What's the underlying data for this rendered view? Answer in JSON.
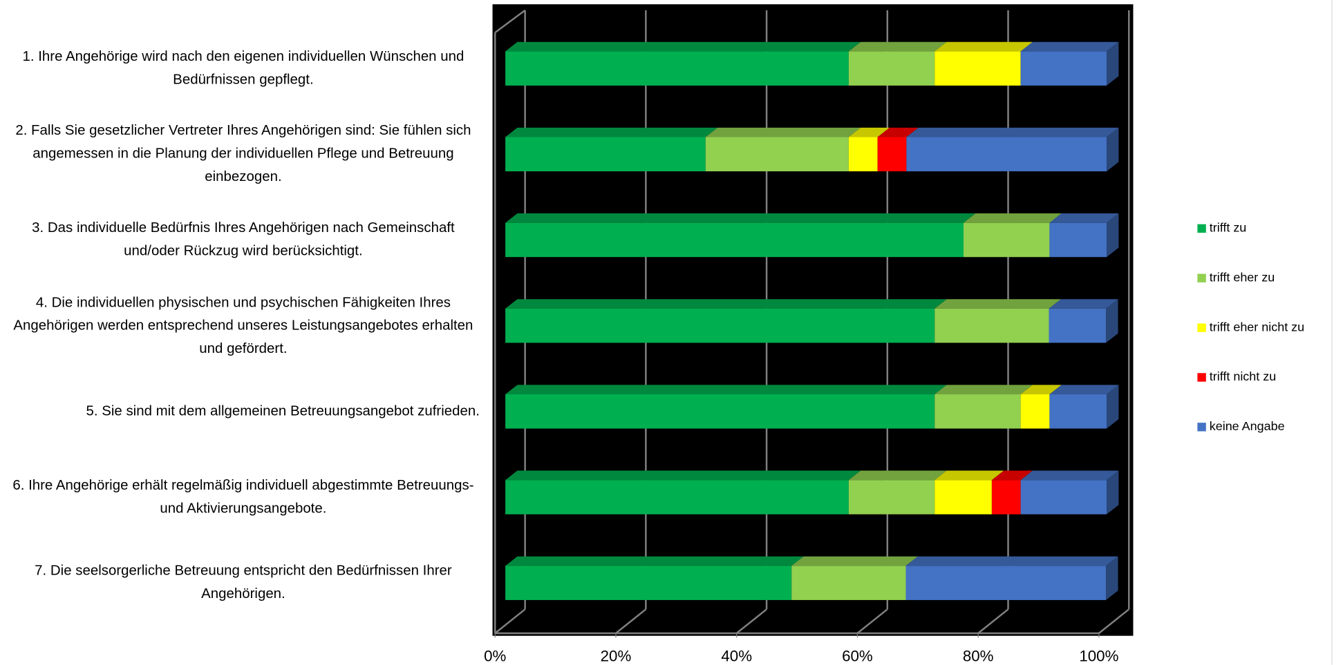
{
  "chart_data": {
    "type": "stacked-bar-horizontal",
    "categories": [
      "1. Ihre Angehörige wird nach den eigenen individuellen Wünschen und Bedürfnissen gepflegt.",
      "2. Falls Sie gesetzlicher Vertreter Ihres Angehörigen sind: Sie fühlen sich angemessen in die Planung der individuellen Pflege und Betreuung einbezogen.",
      "3. Das individuelle Bedürfnis Ihres Angehörigen nach Gemeinschaft und/oder Rückzug wird berücksichtigt.",
      "4. Die individuellen physischen und psychischen Fähigkeiten Ihres Angehörigen werden entsprechend unseres Leistungsangebotes erhalten und gefördert.",
      "5. Sie sind mit dem allgemeinen Betreuungsangebot zufrieden.",
      "6. Ihre Angehörige erhält regelmäßig individuell abgestimmte Betreuungs- und Aktivierungsangebote.",
      "7. Die seelsorgerliche Betreuung entspricht den Bedürfnissen Ihrer Angehörigen."
    ],
    "series": [
      {
        "name": "trifft zu",
        "color": "#00b050",
        "values": [
          57.1,
          33.3,
          76.2,
          71.4,
          71.4,
          57.1,
          47.6
        ]
      },
      {
        "name": "trifft eher zu",
        "color": "#92d050",
        "values": [
          14.3,
          23.8,
          14.3,
          19.0,
          14.3,
          14.3,
          19.0
        ]
      },
      {
        "name": "trifft eher nicht zu",
        "color": "#ffff00",
        "values": [
          14.3,
          4.8,
          0,
          0,
          4.8,
          9.5,
          0
        ]
      },
      {
        "name": "trifft nicht zu",
        "color": "#ff0000",
        "values": [
          0,
          4.8,
          0,
          0,
          0,
          4.8,
          0
        ]
      },
      {
        "name": "keine Angabe",
        "color": "#4472c4",
        "values": [
          14.3,
          33.3,
          9.5,
          9.5,
          9.5,
          14.3,
          33.3
        ]
      }
    ],
    "xlim": [
      0,
      100
    ],
    "xticks": [
      {
        "value": 0,
        "label": "0%"
      },
      {
        "value": 20,
        "label": "20%"
      },
      {
        "value": 40,
        "label": "40%"
      },
      {
        "value": 60,
        "label": "60%"
      },
      {
        "value": 80,
        "label": "80%"
      },
      {
        "value": 100,
        "label": "100%"
      }
    ],
    "grid": true,
    "legend": "right"
  }
}
